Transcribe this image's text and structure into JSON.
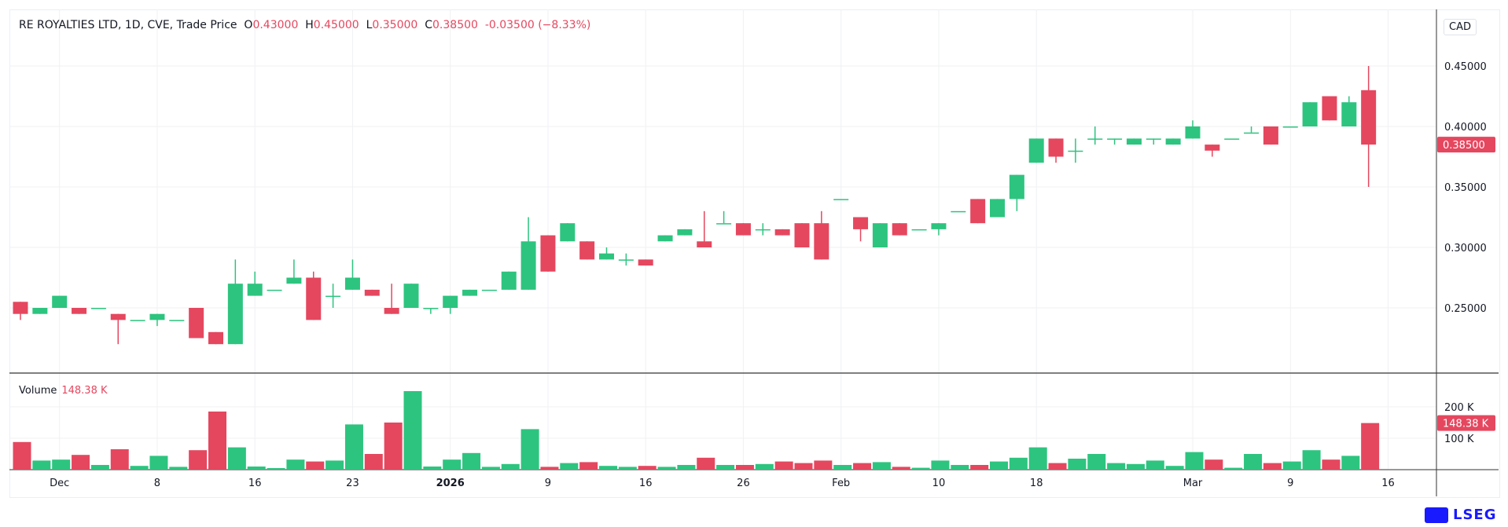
{
  "legend": {
    "title": "RE ROYALTIES LTD, 1D, CVE, Trade Price",
    "o_label": "O",
    "o": "0.43000",
    "h_label": "H",
    "h": "0.45000",
    "l_label": "L",
    "l": "0.35000",
    "c_label": "C",
    "c": "0.38500",
    "change": "-0.03500 (−8.33%)"
  },
  "currency": "CAD",
  "volume_legend": {
    "label": "Volume",
    "value": "148.38 K"
  },
  "brand": "LSEG",
  "colors": {
    "up": "#2dc47f",
    "down": "#e5475f",
    "grid": "#f0f1f3",
    "axis": "#131722"
  },
  "chart_data": {
    "type": "candlestick",
    "title": "RE ROYALTIES LTD, 1D, CVE, Trade Price",
    "price_axis": {
      "ticks": [
        "0.45000",
        "0.40000",
        "0.35000",
        "0.30000",
        "0.25000"
      ],
      "tick_values": [
        0.45,
        0.4,
        0.35,
        0.3,
        0.25
      ],
      "range": [
        0.2,
        0.46
      ],
      "last_price_label": "0.38500",
      "last_price": 0.385
    },
    "volume_axis": {
      "ticks": [
        "200 K",
        "100 K"
      ],
      "tick_values": [
        200,
        100
      ],
      "last_volume_label": "148.38 K",
      "last_volume": 148.38,
      "unit": "K"
    },
    "x_ticks": [
      {
        "label": "Dec",
        "bar": 3
      },
      {
        "label": "8",
        "bar": 8
      },
      {
        "label": "16",
        "bar": 13
      },
      {
        "label": "23",
        "bar": 18
      },
      {
        "label": "2026",
        "bar": 23,
        "bold": true
      },
      {
        "label": "9",
        "bar": 28
      },
      {
        "label": "16",
        "bar": 33
      },
      {
        "label": "26",
        "bar": 38
      },
      {
        "label": "Feb",
        "bar": 43
      },
      {
        "label": "10",
        "bar": 48
      },
      {
        "label": "18",
        "bar": 53
      },
      {
        "label": "Mar",
        "bar": 61
      },
      {
        "label": "9",
        "bar": 66
      },
      {
        "label": "16",
        "bar": 71
      }
    ],
    "ohlcv": [
      [
        0.255,
        0.255,
        0.24,
        0.245,
        88
      ],
      [
        0.245,
        0.25,
        0.245,
        0.25,
        29
      ],
      [
        0.25,
        0.26,
        0.25,
        0.26,
        32
      ],
      [
        0.25,
        0.25,
        0.245,
        0.245,
        47
      ],
      [
        0.25,
        0.25,
        0.25,
        0.25,
        15
      ],
      [
        0.245,
        0.245,
        0.22,
        0.24,
        65
      ],
      [
        0.24,
        0.24,
        0.24,
        0.24,
        12
      ],
      [
        0.24,
        0.245,
        0.235,
        0.245,
        44
      ],
      [
        0.24,
        0.24,
        0.24,
        0.24,
        9
      ],
      [
        0.25,
        0.25,
        0.225,
        0.225,
        62
      ],
      [
        0.23,
        0.23,
        0.22,
        0.22,
        185
      ],
      [
        0.22,
        0.29,
        0.22,
        0.27,
        71
      ],
      [
        0.26,
        0.28,
        0.26,
        0.27,
        10
      ],
      [
        0.265,
        0.265,
        0.265,
        0.265,
        5
      ],
      [
        0.27,
        0.29,
        0.27,
        0.275,
        32
      ],
      [
        0.275,
        0.28,
        0.24,
        0.24,
        26
      ],
      [
        0.26,
        0.27,
        0.25,
        0.26,
        29
      ],
      [
        0.265,
        0.29,
        0.265,
        0.275,
        144
      ],
      [
        0.265,
        0.265,
        0.26,
        0.26,
        50
      ],
      [
        0.25,
        0.27,
        0.245,
        0.245,
        150
      ],
      [
        0.25,
        0.27,
        0.25,
        0.27,
        250
      ],
      [
        0.25,
        0.25,
        0.245,
        0.25,
        10
      ],
      [
        0.25,
        0.26,
        0.245,
        0.26,
        32
      ],
      [
        0.26,
        0.265,
        0.26,
        0.265,
        53
      ],
      [
        0.265,
        0.265,
        0.265,
        0.265,
        9
      ],
      [
        0.265,
        0.28,
        0.265,
        0.28,
        18
      ],
      [
        0.265,
        0.325,
        0.265,
        0.305,
        129
      ],
      [
        0.31,
        0.31,
        0.28,
        0.28,
        9
      ],
      [
        0.305,
        0.32,
        0.305,
        0.32,
        21
      ],
      [
        0.305,
        0.305,
        0.29,
        0.29,
        24
      ],
      [
        0.29,
        0.3,
        0.29,
        0.295,
        12
      ],
      [
        0.29,
        0.295,
        0.285,
        0.29,
        9
      ],
      [
        0.29,
        0.29,
        0.285,
        0.285,
        12
      ],
      [
        0.305,
        0.31,
        0.305,
        0.31,
        9
      ],
      [
        0.31,
        0.315,
        0.31,
        0.315,
        15
      ],
      [
        0.305,
        0.33,
        0.3,
        0.3,
        38
      ],
      [
        0.32,
        0.33,
        0.32,
        0.32,
        15
      ],
      [
        0.32,
        0.32,
        0.31,
        0.31,
        15
      ],
      [
        0.315,
        0.32,
        0.31,
        0.315,
        18
      ],
      [
        0.315,
        0.315,
        0.31,
        0.31,
        26
      ],
      [
        0.32,
        0.32,
        0.3,
        0.3,
        21
      ],
      [
        0.32,
        0.33,
        0.29,
        0.29,
        29
      ],
      [
        0.34,
        0.34,
        0.34,
        0.34,
        15
      ],
      [
        0.325,
        0.325,
        0.305,
        0.315,
        21
      ],
      [
        0.3,
        0.32,
        0.3,
        0.32,
        24
      ],
      [
        0.32,
        0.32,
        0.31,
        0.31,
        9
      ],
      [
        0.315,
        0.315,
        0.315,
        0.315,
        6
      ],
      [
        0.315,
        0.32,
        0.31,
        0.32,
        29
      ],
      [
        0.33,
        0.33,
        0.33,
        0.33,
        15
      ],
      [
        0.34,
        0.34,
        0.32,
        0.32,
        15
      ],
      [
        0.325,
        0.34,
        0.325,
        0.34,
        26
      ],
      [
        0.34,
        0.36,
        0.33,
        0.36,
        38
      ],
      [
        0.37,
        0.39,
        0.37,
        0.39,
        71
      ],
      [
        0.39,
        0.39,
        0.37,
        0.375,
        21
      ],
      [
        0.38,
        0.39,
        0.37,
        0.38,
        35
      ],
      [
        0.39,
        0.4,
        0.385,
        0.39,
        50
      ],
      [
        0.39,
        0.39,
        0.385,
        0.39,
        21
      ],
      [
        0.385,
        0.39,
        0.385,
        0.39,
        18
      ],
      [
        0.39,
        0.39,
        0.385,
        0.39,
        29
      ],
      [
        0.385,
        0.39,
        0.385,
        0.39,
        12
      ],
      [
        0.39,
        0.405,
        0.39,
        0.4,
        56
      ],
      [
        0.385,
        0.385,
        0.375,
        0.38,
        32
      ],
      [
        0.39,
        0.39,
        0.39,
        0.39,
        6
      ],
      [
        0.395,
        0.4,
        0.395,
        0.395,
        50
      ],
      [
        0.4,
        0.4,
        0.385,
        0.385,
        21
      ],
      [
        0.4,
        0.4,
        0.4,
        0.4,
        26
      ],
      [
        0.4,
        0.42,
        0.4,
        0.42,
        62
      ],
      [
        0.425,
        0.425,
        0.405,
        0.405,
        32
      ],
      [
        0.4,
        0.425,
        0.4,
        0.42,
        44
      ],
      [
        0.43,
        0.45,
        0.35,
        0.385,
        148.38
      ]
    ]
  }
}
